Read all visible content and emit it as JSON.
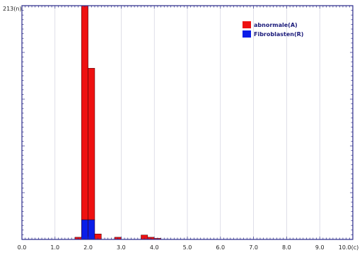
{
  "chart_data": {
    "type": "bar",
    "title": "",
    "xlabel": "",
    "ylabel": "",
    "stacked": true,
    "bin_width": 0.2,
    "xlim": [
      0,
      10
    ],
    "ylim": [
      0,
      213
    ],
    "x_ticks": [
      "0.0",
      "1.0",
      "2.0",
      "3.0",
      "4.0",
      "5.0",
      "6.0",
      "7.0",
      "8.0",
      "9.0",
      "10.0(c)"
    ],
    "y_max_label": "213(n)",
    "bins": [
      1.6,
      1.8,
      2.0,
      2.2,
      2.8,
      3.6,
      3.8,
      4.0
    ],
    "series": [
      {
        "name": "Fibroblasten(R)",
        "color": "#0a1de8",
        "values": [
          0,
          18,
          18,
          0,
          0,
          0,
          0,
          0
        ]
      },
      {
        "name": "abnormale(A)",
        "color": "#ee1111",
        "values": [
          2,
          195,
          138,
          5,
          2,
          4,
          2,
          1
        ]
      }
    ],
    "legend_position": "top-right",
    "grid": true
  }
}
